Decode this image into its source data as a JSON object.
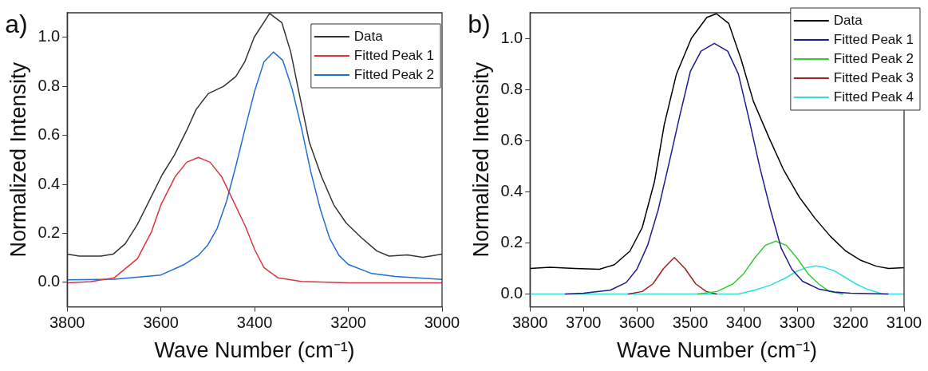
{
  "chart_data": [
    {
      "type": "line",
      "title": "a)",
      "xlabel": "Wave Number (cm⁻¹)",
      "ylabel": "Normalized Intensity",
      "xlim": [
        3800,
        3000
      ],
      "xticks": [
        3800,
        3600,
        3400,
        3200,
        3000
      ],
      "ylim": [
        -0.1,
        1.1
      ],
      "yticks": [
        {
          "value": 0,
          "label": "0.0"
        },
        {
          "value": 0.2,
          "label": "0.2"
        },
        {
          "value": 0.4,
          "label": "0.4"
        },
        {
          "value": 0.6,
          "label": "0.6"
        },
        {
          "value": 0.8,
          "label": "0.8"
        },
        {
          "value": 1,
          "label": "1.0"
        }
      ],
      "grid": false,
      "legend": "top right",
      "marker": "none",
      "series": [
        {
          "name": "Data",
          "color": "#333333",
          "x": [
            3800,
            3774,
            3728,
            3702,
            3676,
            3650,
            3623,
            3597,
            3571,
            3545,
            3525,
            3499,
            3466,
            3440,
            3421,
            3401,
            3368,
            3342,
            3323,
            3303,
            3283,
            3257,
            3231,
            3205,
            3172,
            3139,
            3113,
            3074,
            3041,
            3000
          ],
          "values": [
            0.115,
            0.107,
            0.107,
            0.115,
            0.158,
            0.237,
            0.34,
            0.44,
            0.52,
            0.62,
            0.705,
            0.77,
            0.8,
            0.84,
            0.9,
            1.0,
            1.097,
            1.06,
            0.94,
            0.754,
            0.57,
            0.43,
            0.316,
            0.243,
            0.182,
            0.128,
            0.107,
            0.112,
            0.102,
            0.115
          ]
        },
        {
          "name": "Fitted Peak 1",
          "color": "#d9363e",
          "x": [
            3800,
            3750,
            3700,
            3650,
            3620,
            3600,
            3570,
            3545,
            3520,
            3495,
            3470,
            3450,
            3420,
            3400,
            3380,
            3350,
            3300,
            3200,
            3000
          ],
          "values": [
            -0.002,
            0.003,
            0.018,
            0.097,
            0.207,
            0.316,
            0.43,
            0.49,
            0.51,
            0.49,
            0.43,
            0.35,
            0.23,
            0.134,
            0.06,
            0.018,
            0.004,
            -0.002,
            -0.002
          ]
        },
        {
          "name": "Fitted Peak 2",
          "color": "#1f6fd0",
          "x": [
            3800,
            3700,
            3600,
            3550,
            3520,
            3500,
            3480,
            3460,
            3440,
            3420,
            3400,
            3380,
            3360,
            3340,
            3320,
            3300,
            3280,
            3260,
            3240,
            3220,
            3200,
            3150,
            3100,
            3000
          ],
          "values": [
            0.01,
            0.013,
            0.03,
            0.073,
            0.11,
            0.152,
            0.22,
            0.33,
            0.475,
            0.63,
            0.78,
            0.9,
            0.94,
            0.906,
            0.79,
            0.63,
            0.45,
            0.3,
            0.18,
            0.11,
            0.073,
            0.036,
            0.024,
            0.012
          ]
        }
      ]
    },
    {
      "type": "line",
      "title": "b)",
      "xlabel": "Wave Number (cm⁻¹)",
      "ylabel": "Normalized Intensity",
      "xlim": [
        3800,
        3100
      ],
      "xticks": [
        3800,
        3700,
        3600,
        3500,
        3400,
        3300,
        3200,
        3100
      ],
      "ylim": [
        -0.05,
        1.1
      ],
      "yticks": [
        {
          "value": 0,
          "label": "0.0"
        },
        {
          "value": 0.2,
          "label": "0.2"
        },
        {
          "value": 0.4,
          "label": "0.4"
        },
        {
          "value": 0.6,
          "label": "0.6"
        },
        {
          "value": 0.8,
          "label": "0.8"
        },
        {
          "value": 1,
          "label": "1.0"
        }
      ],
      "grid": false,
      "legend": "top right",
      "marker": "none",
      "series": [
        {
          "name": "Data",
          "color": "#000000",
          "x": [
            3800,
            3763,
            3716,
            3670,
            3642,
            3613,
            3590,
            3567,
            3549,
            3526,
            3498,
            3469,
            3451,
            3428,
            3405,
            3382,
            3353,
            3325,
            3296,
            3267,
            3238,
            3209,
            3181,
            3152,
            3129,
            3100
          ],
          "values": [
            0.1,
            0.105,
            0.1,
            0.097,
            0.115,
            0.168,
            0.26,
            0.44,
            0.66,
            0.86,
            1.0,
            1.082,
            1.096,
            1.058,
            0.918,
            0.754,
            0.613,
            0.484,
            0.379,
            0.297,
            0.226,
            0.168,
            0.132,
            0.109,
            0.1,
            0.103
          ]
        },
        {
          "name": "Fitted Peak 1",
          "color": "#1c1c8c",
          "x": [
            3734,
            3700,
            3650,
            3620,
            3600,
            3580,
            3560,
            3540,
            3520,
            3500,
            3480,
            3455,
            3430,
            3410,
            3390,
            3370,
            3350,
            3330,
            3310,
            3290,
            3260,
            3230,
            3200,
            3130
          ],
          "values": [
            0.0,
            0.003,
            0.015,
            0.045,
            0.097,
            0.19,
            0.33,
            0.51,
            0.695,
            0.87,
            0.95,
            0.98,
            0.95,
            0.86,
            0.683,
            0.496,
            0.33,
            0.18,
            0.097,
            0.05,
            0.02,
            0.008,
            0.003,
            0.0
          ]
        },
        {
          "name": "Fitted Peak 2",
          "color": "#33cc33",
          "x": [
            3486,
            3450,
            3420,
            3400,
            3380,
            3360,
            3340,
            3320,
            3300,
            3280,
            3260,
            3240,
            3215
          ],
          "values": [
            0.0,
            0.01,
            0.04,
            0.08,
            0.14,
            0.19,
            0.207,
            0.19,
            0.14,
            0.08,
            0.04,
            0.01,
            0.0
          ]
        },
        {
          "name": "Fitted Peak 3",
          "color": "#a02020",
          "x": [
            3616,
            3590,
            3570,
            3550,
            3530,
            3510,
            3490,
            3470,
            3451
          ],
          "values": [
            0.0,
            0.01,
            0.04,
            0.1,
            0.143,
            0.1,
            0.04,
            0.01,
            0.0
          ]
        },
        {
          "name": "Fitted Peak 4",
          "color": "#33dddd",
          "x": [
            3800,
            3410,
            3380,
            3350,
            3320,
            3300,
            3280,
            3265,
            3250,
            3230,
            3210,
            3190,
            3170,
            3140,
            3100
          ],
          "values": [
            0.0,
            0.0,
            0.015,
            0.035,
            0.065,
            0.09,
            0.105,
            0.11,
            0.105,
            0.09,
            0.065,
            0.04,
            0.02,
            0.0,
            0.0
          ]
        }
      ]
    }
  ]
}
